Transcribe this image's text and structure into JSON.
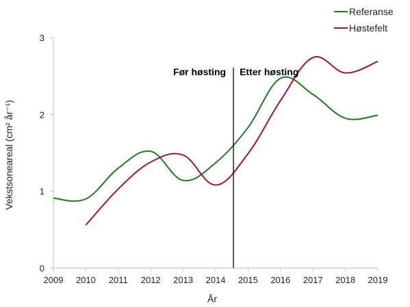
{
  "chart_data": {
    "type": "line",
    "title": "",
    "xlabel": "År",
    "ylabel": "Vekstsoneareal  (cm² år⁻¹)",
    "xlim": [
      2009,
      2019
    ],
    "ylim": [
      0,
      3
    ],
    "x_ticks": [
      "2009",
      "2010",
      "2011",
      "2012",
      "2013",
      "2014",
      "2015",
      "2016",
      "2017",
      "2018",
      "2019"
    ],
    "y_ticks": [
      "0",
      "1",
      "2",
      "3"
    ],
    "grid": false,
    "legend_position": "top-right",
    "series": [
      {
        "name": "Referanse",
        "color": "#1e7a1e",
        "x": [
          2009,
          2010,
          2011,
          2012,
          2013,
          2014,
          2015,
          2016,
          2017,
          2018,
          2019
        ],
        "values": [
          0.91,
          0.9,
          1.3,
          1.52,
          1.14,
          1.37,
          1.83,
          2.47,
          2.26,
          1.95,
          1.99
        ]
      },
      {
        "name": "Høstefelt",
        "color": "#a3122e",
        "x": [
          2010,
          2011,
          2012,
          2013,
          2014,
          2015,
          2016,
          2017,
          2018,
          2019
        ],
        "values": [
          0.56,
          1.03,
          1.38,
          1.47,
          1.08,
          1.49,
          2.18,
          2.74,
          2.54,
          2.69
        ]
      }
    ],
    "divider": {
      "x": 2014.55,
      "left_label": "Før høsting",
      "right_label": "Etter høsting"
    }
  }
}
